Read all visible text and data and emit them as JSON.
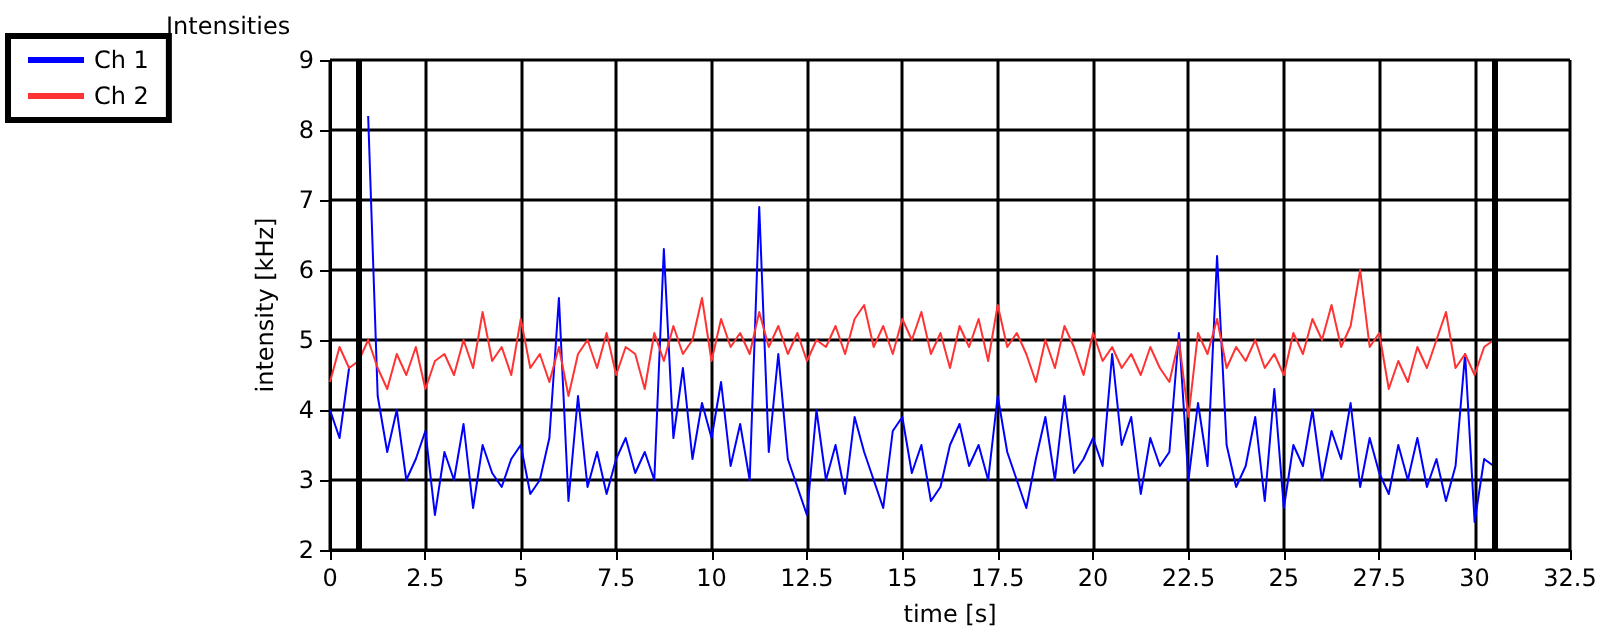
{
  "chart_data": {
    "type": "line",
    "title": "Intensities",
    "xlabel": "time [s]",
    "ylabel": "intensity [kHz]",
    "x": [
      0,
      0.25,
      0.5,
      0.75,
      1,
      1.25,
      1.5,
      1.75,
      2,
      2.25,
      2.5,
      2.75,
      3,
      3.25,
      3.5,
      3.75,
      4,
      4.25,
      4.5,
      4.75,
      5,
      5.25,
      5.5,
      5.75,
      6,
      6.25,
      6.5,
      6.75,
      7,
      7.25,
      7.5,
      7.75,
      8,
      8.25,
      8.5,
      8.75,
      9,
      9.25,
      9.5,
      9.75,
      10,
      10.25,
      10.5,
      10.75,
      11,
      11.25,
      11.5,
      11.75,
      12,
      12.25,
      12.5,
      12.75,
      13,
      13.25,
      13.5,
      13.75,
      14,
      14.25,
      14.5,
      14.75,
      15,
      15.25,
      15.5,
      15.75,
      16,
      16.25,
      16.5,
      16.75,
      17,
      17.25,
      17.5,
      17.75,
      18,
      18.25,
      18.5,
      18.75,
      19,
      19.25,
      19.5,
      19.75,
      20,
      20.25,
      20.5,
      20.75,
      21,
      21.25,
      21.5,
      21.75,
      22,
      22.25,
      22.5,
      22.75,
      23,
      23.25,
      23.5,
      23.75,
      24,
      24.25,
      24.5,
      24.75,
      25,
      25.25,
      25.5,
      25.75,
      26,
      26.25,
      26.5,
      26.75,
      27,
      27.25,
      27.5,
      27.75,
      28,
      28.25,
      28.5,
      28.75,
      29,
      29.25,
      29.5,
      29.75,
      30,
      30.25,
      30.5
    ],
    "series": [
      {
        "name": "Ch 1",
        "color": "#0000ff",
        "values": [
          4.0,
          3.6,
          4.6,
          null,
          8.2,
          4.2,
          3.4,
          4.0,
          3.0,
          3.3,
          3.7,
          2.5,
          3.4,
          3.0,
          3.8,
          2.6,
          3.5,
          3.1,
          2.9,
          3.3,
          3.5,
          2.8,
          3.0,
          3.6,
          5.6,
          2.7,
          4.2,
          2.9,
          3.4,
          2.8,
          3.3,
          3.6,
          3.1,
          3.4,
          3.0,
          6.3,
          3.6,
          4.6,
          3.3,
          4.1,
          3.6,
          4.4,
          3.2,
          3.8,
          3.0,
          6.9,
          3.4,
          4.8,
          3.3,
          2.9,
          2.5,
          4.0,
          3.0,
          3.5,
          2.8,
          3.9,
          3.4,
          3.0,
          2.6,
          3.7,
          3.9,
          3.1,
          3.5,
          2.7,
          2.9,
          3.5,
          3.8,
          3.2,
          3.5,
          3.0,
          4.2,
          3.4,
          3.0,
          2.6,
          3.3,
          3.9,
          3.0,
          4.2,
          3.1,
          3.3,
          3.6,
          3.2,
          4.8,
          3.5,
          3.9,
          2.8,
          3.6,
          3.2,
          3.4,
          5.1,
          3.0,
          4.1,
          3.2,
          6.2,
          3.5,
          2.9,
          3.2,
          3.9,
          2.7,
          4.3,
          2.6,
          3.5,
          3.2,
          4.0,
          3.0,
          3.7,
          3.3,
          4.1,
          2.9,
          3.6,
          3.1,
          2.8,
          3.5,
          3.0,
          3.6,
          2.9,
          3.3,
          2.7,
          3.2,
          4.8,
          2.4,
          3.3,
          3.2
        ]
      },
      {
        "name": "Ch 2",
        "color": "#ff3333",
        "values": [
          4.4,
          4.9,
          4.6,
          4.7,
          5.0,
          4.6,
          4.3,
          4.8,
          4.5,
          4.9,
          4.3,
          4.7,
          4.8,
          4.5,
          5.0,
          4.6,
          5.4,
          4.7,
          4.9,
          4.5,
          5.3,
          4.6,
          4.8,
          4.4,
          4.9,
          4.2,
          4.8,
          5.0,
          4.6,
          5.1,
          4.5,
          4.9,
          4.8,
          4.3,
          5.1,
          4.7,
          5.2,
          4.8,
          5.0,
          5.6,
          4.7,
          5.3,
          4.9,
          5.1,
          4.8,
          5.4,
          4.9,
          5.2,
          4.8,
          5.1,
          4.7,
          5.0,
          4.9,
          5.2,
          4.8,
          5.3,
          5.5,
          4.9,
          5.2,
          4.8,
          5.3,
          5.0,
          5.4,
          4.8,
          5.1,
          4.6,
          5.2,
          4.9,
          5.3,
          4.7,
          5.5,
          4.9,
          5.1,
          4.8,
          4.4,
          5.0,
          4.6,
          5.2,
          4.9,
          4.5,
          5.1,
          4.7,
          4.9,
          4.6,
          4.8,
          4.5,
          4.9,
          4.6,
          4.4,
          5.0,
          3.9,
          5.1,
          4.8,
          5.3,
          4.6,
          4.9,
          4.7,
          5.0,
          4.6,
          4.8,
          4.5,
          5.1,
          4.8,
          5.3,
          5.0,
          5.5,
          4.9,
          5.2,
          6.0,
          4.9,
          5.1,
          4.3,
          4.7,
          4.4,
          4.9,
          4.6,
          5.0,
          5.4,
          4.6,
          4.8,
          4.5,
          4.9,
          5.0
        ]
      }
    ],
    "xlim": [
      0,
      32.5
    ],
    "xticks": [
      0,
      2.5,
      5,
      7.5,
      10,
      12.5,
      15,
      17.5,
      20,
      22.5,
      25,
      27.5,
      30,
      32.5
    ],
    "ylim": [
      2,
      9
    ],
    "yticks": [
      2,
      3,
      4,
      5,
      6,
      7,
      8,
      9
    ],
    "ref_lines": [
      {
        "axis": "x",
        "value": 0.75,
        "color": "#000000"
      },
      {
        "axis": "x",
        "value": 30.5,
        "color": "#000000"
      }
    ],
    "grid": true,
    "legend": "top left",
    "marker": "none",
    "line_style": "solid"
  }
}
